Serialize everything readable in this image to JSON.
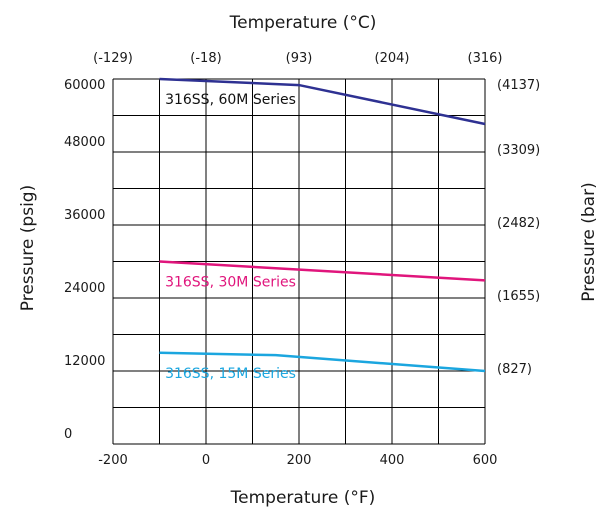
{
  "chart_data": {
    "type": "line",
    "title": "",
    "top_axis_label": "Temperature (°C)",
    "top_ticks": [
      "(-129)",
      "(-18)",
      "(93)",
      "(204)",
      "(316)"
    ],
    "xlabel": "Temperature (°F)",
    "x_ticks": [
      "-200",
      "0",
      "200",
      "400",
      "600"
    ],
    "xlim": [
      -200,
      600
    ],
    "ylabel": "Pressure (psig)",
    "y_ticks": [
      "0",
      "12000",
      "24000",
      "36000",
      "48000",
      "60000"
    ],
    "ylim": [
      0,
      60000
    ],
    "right_axis_label": "Pressure (bar)",
    "right_ticks": [
      "(827)",
      "(1655)",
      "(2482)",
      "(3309)",
      "(4137)"
    ],
    "grid": true,
    "series": [
      {
        "name": "316SS, 60M Series",
        "color": "#2e3192",
        "x": [
          -100,
          200,
          600
        ],
        "y": [
          60000,
          59000,
          52600
        ]
      },
      {
        "name": "316SS, 30M Series",
        "color": "#e0157c",
        "x": [
          -100,
          600
        ],
        "y": [
          30000,
          26900
        ]
      },
      {
        "name": "316SS, 15M Series",
        "color": "#1ba6df",
        "x": [
          -100,
          150,
          600
        ],
        "y": [
          15000,
          14600,
          12000
        ]
      }
    ]
  }
}
